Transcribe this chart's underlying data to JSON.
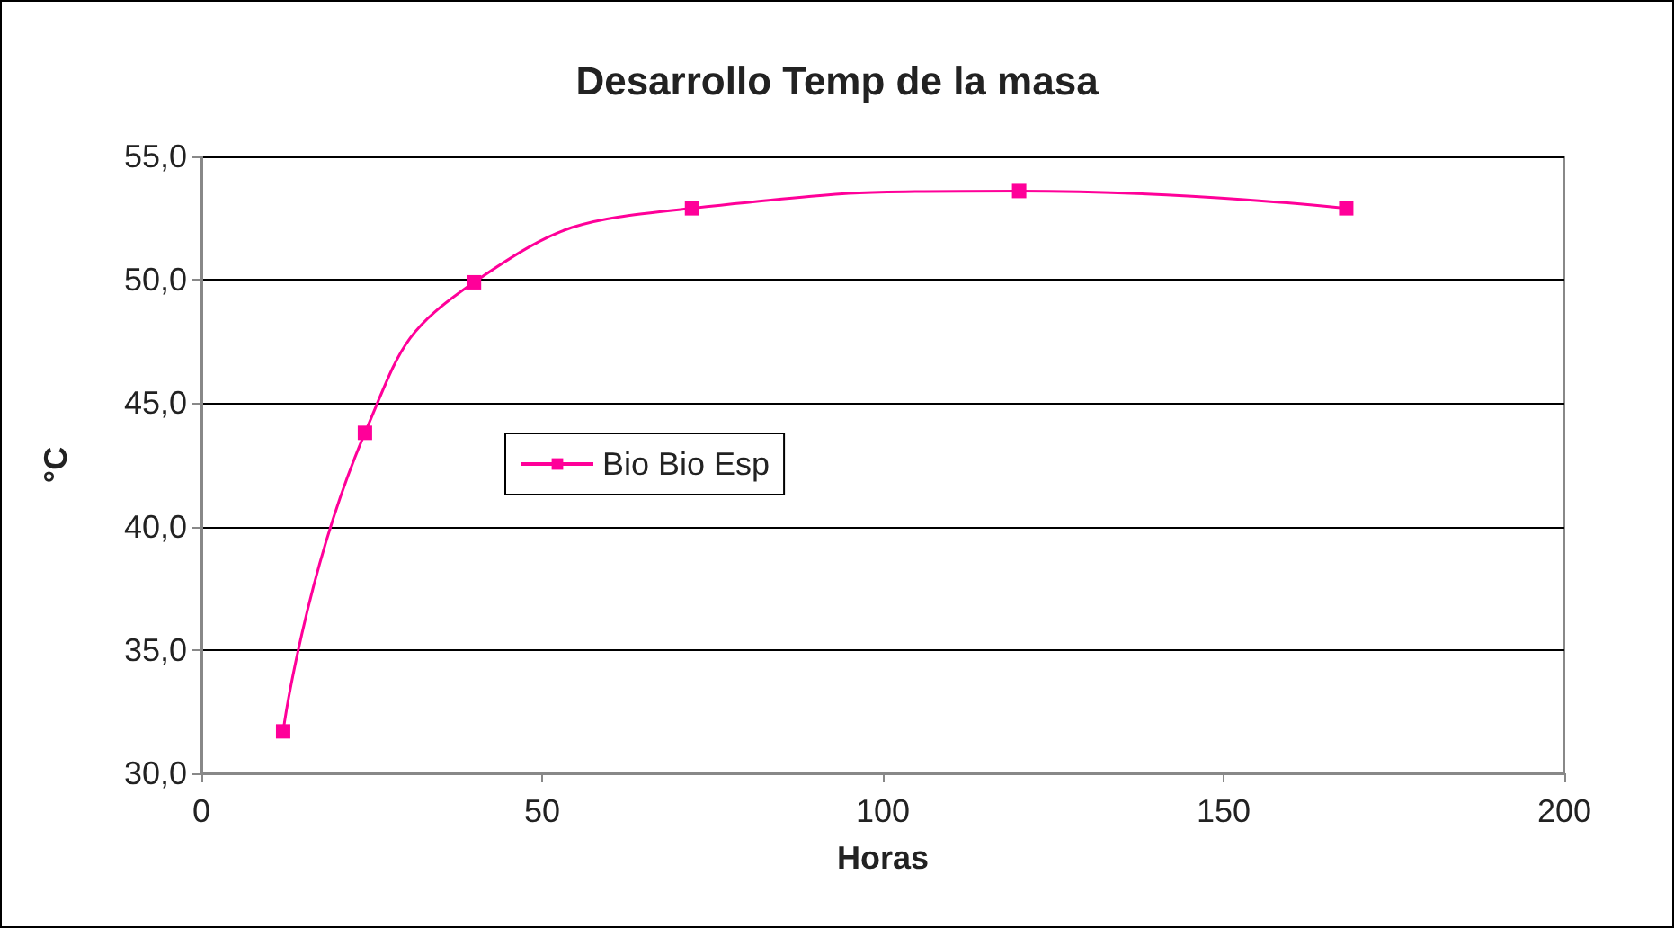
{
  "chart_data": {
    "type": "line",
    "title": "Desarrollo Temp de la masa",
    "xlabel": "Horas",
    "ylabel": "°C",
    "x": [
      12,
      24,
      40,
      72,
      120,
      168
    ],
    "series": [
      {
        "name": "Bio Bio Esp",
        "color": "#ff0099",
        "values": [
          31.7,
          43.8,
          49.9,
          52.9,
          53.6,
          52.9
        ]
      }
    ],
    "xlim": [
      0,
      200
    ],
    "xticks": [
      0,
      50,
      100,
      150,
      200
    ],
    "ylim": [
      30,
      55
    ],
    "yticks": [
      {
        "value": 30,
        "label": "30,0"
      },
      {
        "value": 35,
        "label": "35,0"
      },
      {
        "value": 40,
        "label": "40,0"
      },
      {
        "value": 45,
        "label": "45,0"
      },
      {
        "value": 50,
        "label": "50,0"
      },
      {
        "value": 55,
        "label": "55,0"
      }
    ],
    "grid": "y",
    "legend": "left",
    "marker": "square",
    "line_style": "solid"
  }
}
